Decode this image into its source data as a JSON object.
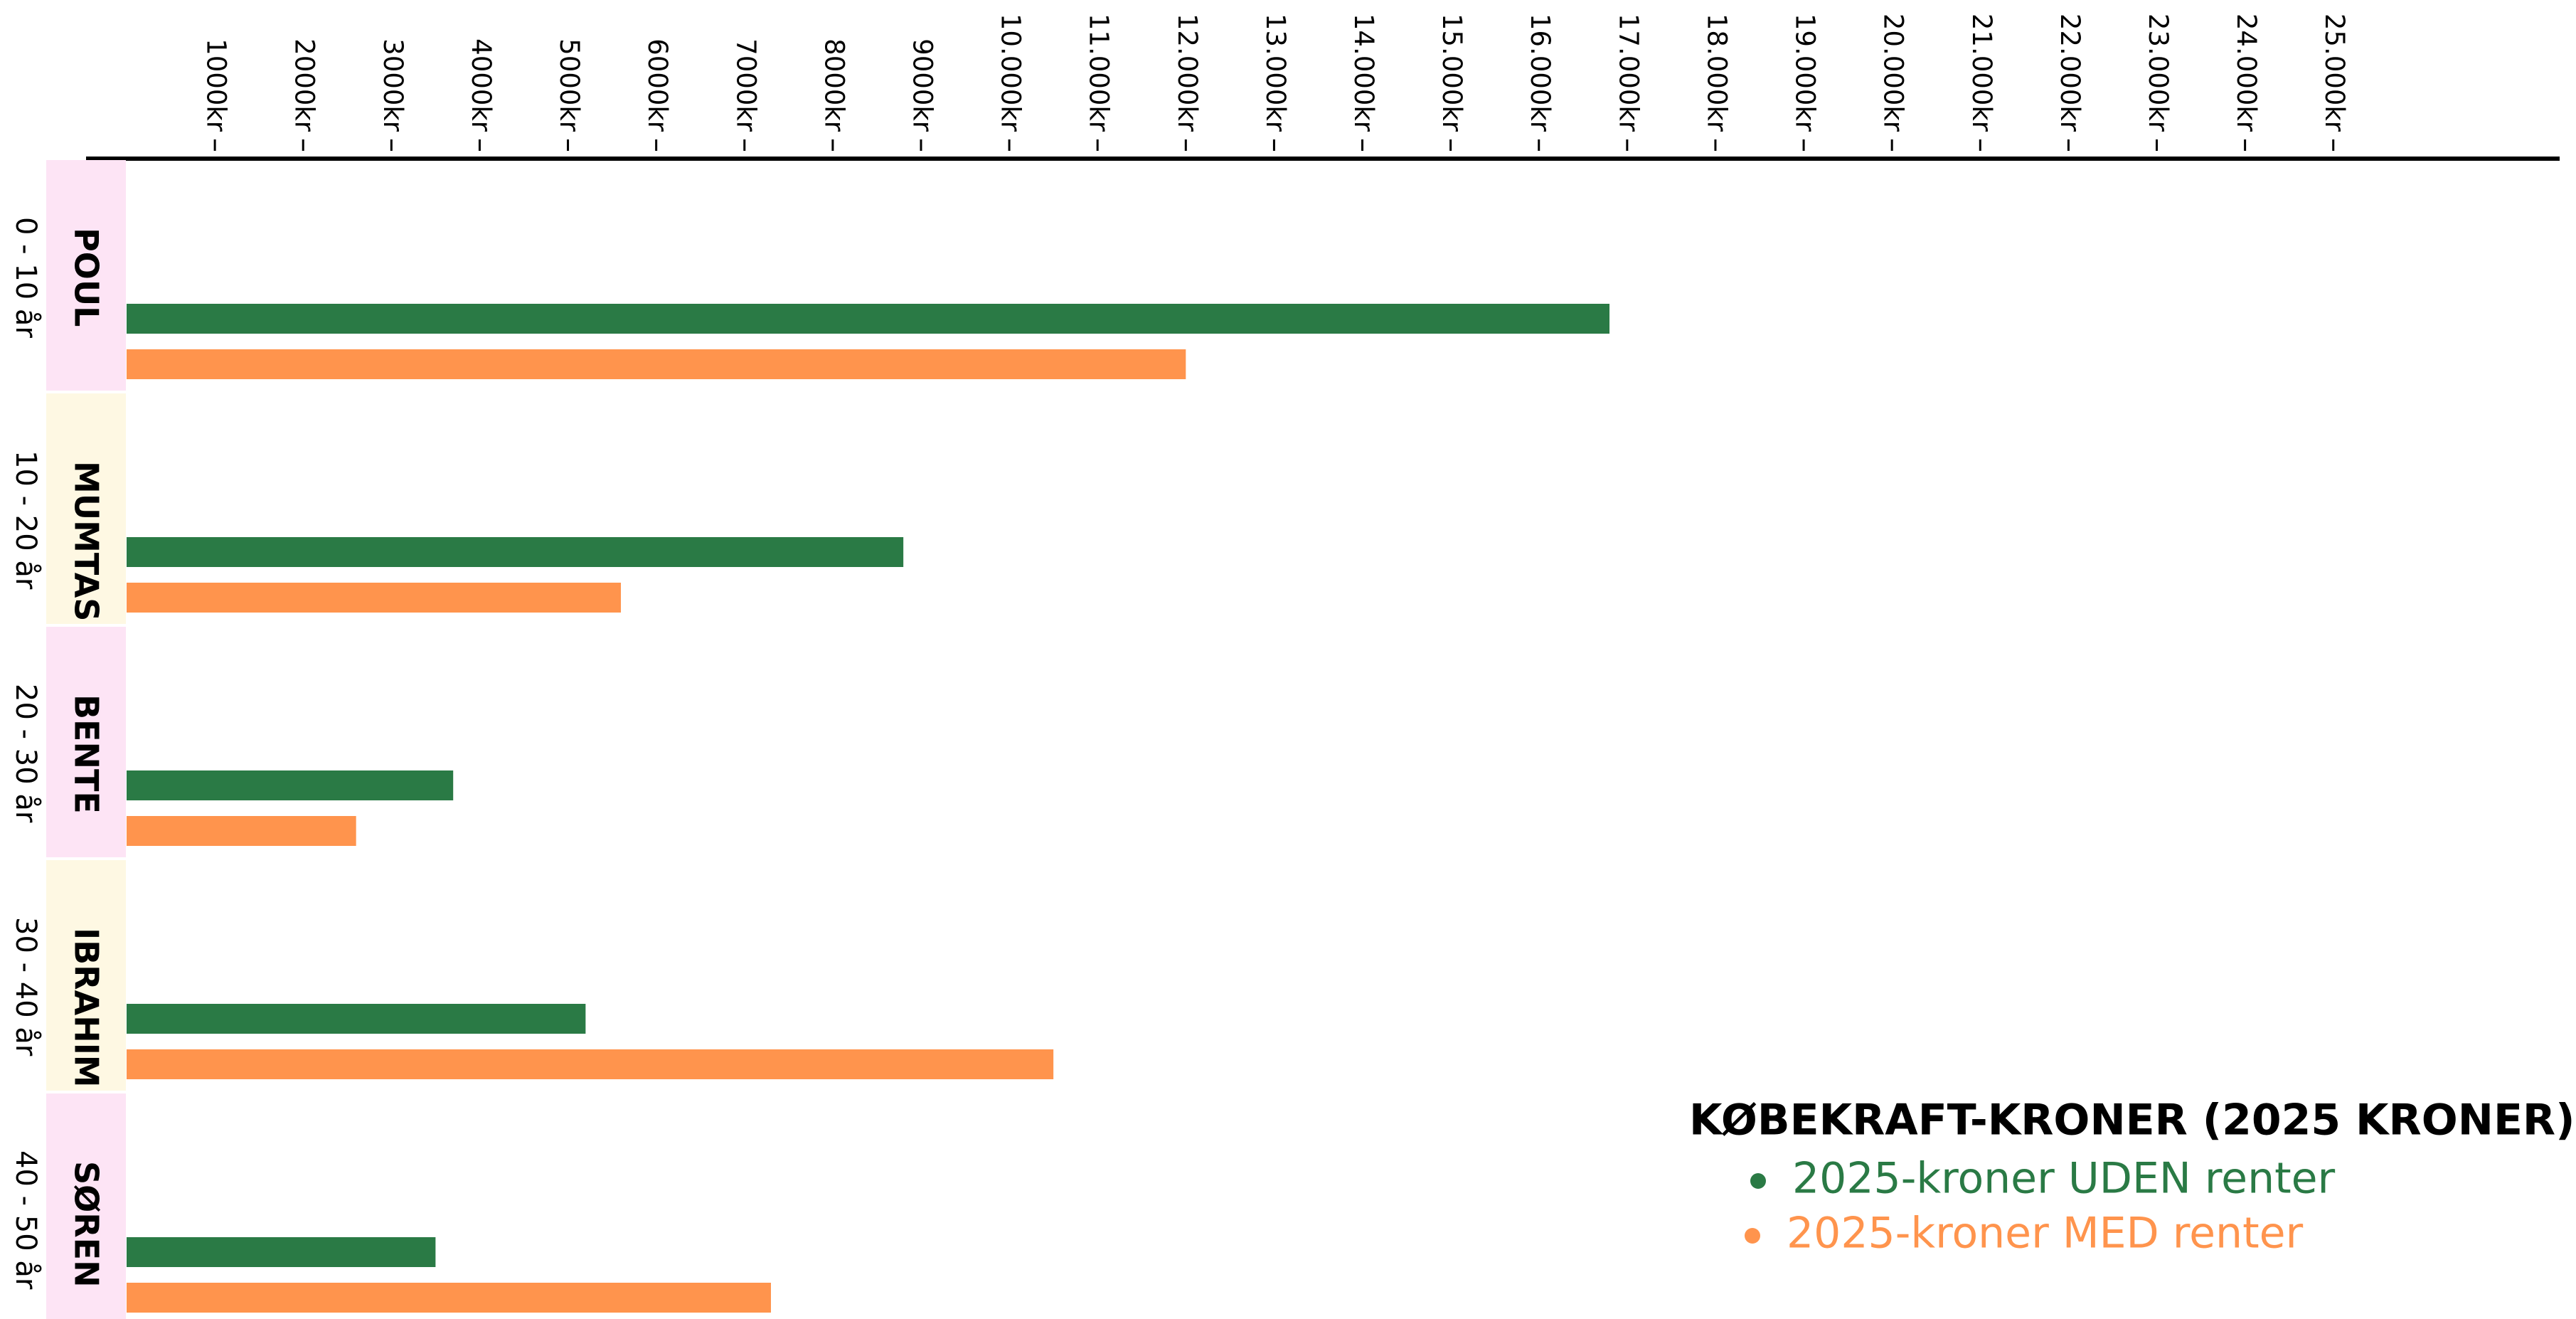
{
  "chart_data": {
    "type": "barh",
    "categories": [
      "POUL",
      "MUMTAS",
      "BENTE",
      "IBRAHIM",
      "SØREN"
    ],
    "category_sublabels": [
      "0 - 10 år",
      "10 - 20 år",
      "20 - 30 år",
      "30 - 40 år",
      "40 - 50 år"
    ],
    "category_colors": [
      "#fde4f5",
      "#fef8e3",
      "#fde4f5",
      "#fef8e3",
      "#fde4f5"
    ],
    "series": [
      {
        "name": "2025-kroner UDEN renter",
        "color": "#2a7a45",
        "values": [
          16800,
          8800,
          3700,
          5200,
          3500
        ]
      },
      {
        "name": "2025-kroner MED renter",
        "color": "#ff944d",
        "values": [
          12000,
          5600,
          2600,
          10500,
          7300
        ]
      }
    ],
    "legend_title": "KØBEKRAFT-KRONER (2025 KRONER):",
    "legend": "bottom-right",
    "xlim": [
      0,
      27500
    ],
    "xticks": [
      {
        "value": 1000,
        "label": "1000kr"
      },
      {
        "value": 2000,
        "label": "2000kr"
      },
      {
        "value": 3000,
        "label": "3000kr"
      },
      {
        "value": 4000,
        "label": "4000kr"
      },
      {
        "value": 5000,
        "label": "5000kr"
      },
      {
        "value": 6000,
        "label": "6000kr"
      },
      {
        "value": 7000,
        "label": "7000kr"
      },
      {
        "value": 8000,
        "label": "8000kr"
      },
      {
        "value": 9000,
        "label": "9000kr"
      },
      {
        "value": 10000,
        "label": "10.000kr"
      },
      {
        "value": 11000,
        "label": "11.000kr"
      },
      {
        "value": 12000,
        "label": "12.000kr"
      },
      {
        "value": 13000,
        "label": "13.000kr"
      },
      {
        "value": 14000,
        "label": "14.000kr"
      },
      {
        "value": 15000,
        "label": "15.000kr"
      },
      {
        "value": 16000,
        "label": "16.000kr"
      },
      {
        "value": 17000,
        "label": "17.000kr"
      },
      {
        "value": 18000,
        "label": "18.000kr"
      },
      {
        "value": 19000,
        "label": "19.000kr"
      },
      {
        "value": 20000,
        "label": "20.000kr"
      },
      {
        "value": 21000,
        "label": "21.000kr"
      },
      {
        "value": 22000,
        "label": "22.000kr"
      },
      {
        "value": 23000,
        "label": "23.000kr"
      },
      {
        "value": 24000,
        "label": "24.000kr"
      },
      {
        "value": 25000,
        "label": "25.000kr"
      }
    ],
    "grid": false
  }
}
